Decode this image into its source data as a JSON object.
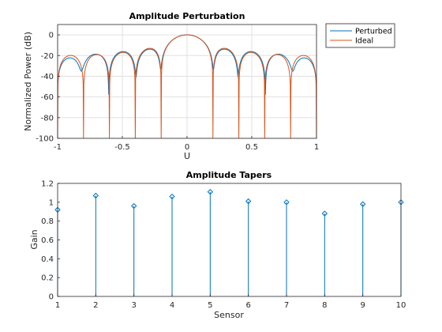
{
  "chart_data": [
    {
      "type": "line",
      "title": "Amplitude Perturbation",
      "xlabel": "U",
      "ylabel": "Normalized Power (dB)",
      "xlim": [
        -1,
        1
      ],
      "ylim": [
        -100,
        10
      ],
      "xticks": [
        -1,
        -0.5,
        0,
        0.5,
        1
      ],
      "xtick_labels": [
        "-1",
        "-0.5",
        "0",
        "0.5",
        "1"
      ],
      "yticks": [
        0,
        -20,
        -40,
        -60,
        -80,
        -100
      ],
      "ytick_labels": [
        "0",
        "-20",
        "-40",
        "-60",
        "-80",
        "-100"
      ],
      "grid": true,
      "legend": "outside top-right",
      "array": {
        "elements": 10,
        "ideal_weights": [
          1,
          1,
          1,
          1,
          1,
          1,
          1,
          1,
          1,
          1
        ],
        "perturbed_weights": [
          0.92,
          1.07,
          0.96,
          1.06,
          1.11,
          1.01,
          1.0,
          0.88,
          0.98,
          1.0
        ]
      },
      "series": [
        {
          "name": "Perturbed",
          "color": "#0072BD"
        },
        {
          "name": "Ideal",
          "color": "#D95319"
        }
      ]
    },
    {
      "type": "stem",
      "title": "Amplitude Tapers",
      "xlabel": "Sensor",
      "ylabel": "Gain",
      "xlim": [
        1,
        10
      ],
      "ylim": [
        0,
        1.2
      ],
      "xticks": [
        1,
        2,
        3,
        4,
        5,
        6,
        7,
        8,
        9,
        10
      ],
      "xtick_labels": [
        "1",
        "2",
        "3",
        "4",
        "5",
        "6",
        "7",
        "8",
        "9",
        "10"
      ],
      "yticks": [
        0,
        0.2,
        0.4,
        0.6,
        0.8,
        1,
        1.2
      ],
      "ytick_labels": [
        "0",
        "0.2",
        "0.4",
        "0.6",
        "0.8",
        "1",
        "1.2"
      ],
      "grid": false,
      "x": [
        1,
        2,
        3,
        4,
        5,
        6,
        7,
        8,
        9,
        10
      ],
      "values": [
        0.92,
        1.07,
        0.96,
        1.06,
        1.11,
        1.01,
        1.0,
        0.88,
        0.98,
        1.0
      ],
      "color": "#0072BD",
      "marker": "diamond"
    }
  ]
}
